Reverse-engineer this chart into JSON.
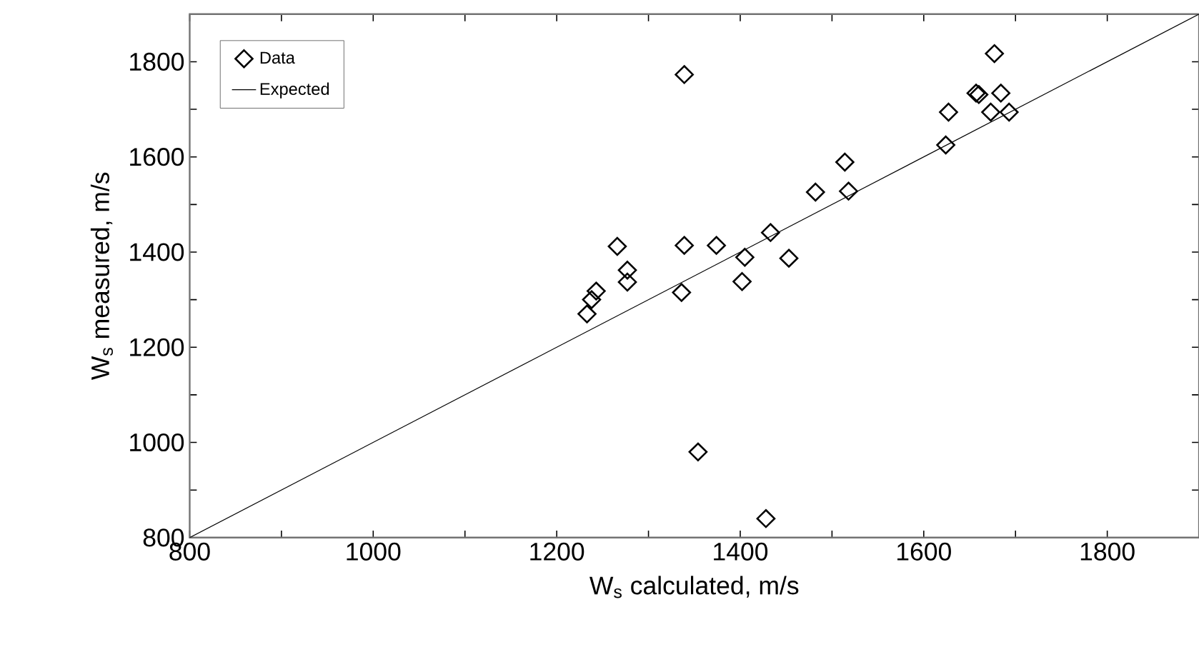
{
  "chart_data": {
    "type": "scatter",
    "xlabel": "W$_{s}$ calculated, m/s",
    "ylabel": "W$_{s}$ measured, m/s",
    "xlim": [
      800,
      1900
    ],
    "ylim": [
      800,
      1900
    ],
    "xticks": [
      800,
      {
        "value": 900,
        "label": null
      },
      1000,
      {
        "value": 1100,
        "label": null
      },
      1200,
      {
        "value": 1300,
        "label": null
      },
      1400,
      {
        "value": 1500,
        "label": null
      },
      1600,
      {
        "value": 1700,
        "label": null
      },
      1800,
      {
        "value": 1900,
        "label": null
      }
    ],
    "yticks": [
      800,
      {
        "value": 900,
        "label": null
      },
      1000,
      {
        "value": 1100,
        "label": null
      },
      1200,
      {
        "value": 1300,
        "label": null
      },
      1400,
      {
        "value": 1500,
        "label": null
      },
      1600,
      {
        "value": 1700,
        "label": null
      },
      1800,
      {
        "value": 1900,
        "label": null
      }
    ],
    "grid": false,
    "legend": "top left",
    "marker": "diamond",
    "series": [
      {
        "name": "Data",
        "color": "#000000",
        "x": [
          1339,
          1266,
          1277,
          1277,
          1243,
          1238,
          1233,
          1339,
          1336,
          1374,
          1354,
          1405,
          1402,
          1428,
          1433,
          1453,
          1482,
          1518,
          1514,
          1624,
          1627,
          1657,
          1660,
          1677,
          1684,
          1673,
          1693
        ],
        "values": [
          1773,
          1412,
          1362,
          1337,
          1318,
          1300,
          1270,
          1414,
          1315,
          1414,
          980,
          1389,
          1338,
          840,
          1441,
          1387,
          1526,
          1528,
          1589,
          1625,
          1694,
          1734,
          1731,
          1817,
          1734,
          1694,
          1694
        ]
      },
      {
        "name": "Expected",
        "type": "line",
        "color": "#000000",
        "marker": "none",
        "line_style": "solid",
        "x": [
          800,
          1900
        ],
        "values": [
          800,
          1900
        ]
      }
    ]
  }
}
